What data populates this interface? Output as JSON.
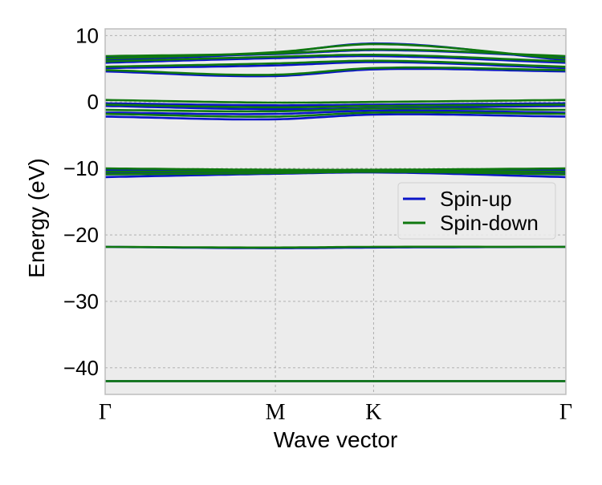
{
  "chart_data": {
    "type": "line",
    "title": "",
    "xlabel": "Wave vector",
    "ylabel": "Energy (eV)",
    "ylim": [
      -44,
      11
    ],
    "xlim": [
      0,
      1
    ],
    "y_ticks": [
      10,
      0,
      -10,
      -20,
      -30,
      -40
    ],
    "y_tick_labels": [
      "10",
      "0",
      "−10",
      "−20",
      "−30",
      "−40"
    ],
    "x_ticks": [
      {
        "label": "Γ",
        "x": 0.0
      },
      {
        "label": "M",
        "x": 0.3695
      },
      {
        "label": "K",
        "x": 0.5826
      },
      {
        "label": "Γ",
        "x": 1.0
      }
    ],
    "grid": true,
    "legend_position": "center-right",
    "colors": {
      "spin_up": "#0a14c8",
      "spin_down": "#0f780f",
      "axes_background": "#ececec",
      "grid": "#a8a8a8",
      "frame": "#bdbdbd"
    },
    "series": [
      {
        "name": "Spin-up",
        "color": "#0a14c8",
        "bands": [
          {
            "x": [
              0,
              0.3695,
              0.5826,
              1.0
            ],
            "y": [
              -42.0,
              -42.0,
              -42.0,
              -42.0
            ]
          },
          {
            "x": [
              0,
              0.3695,
              0.5826,
              1.0
            ],
            "y": [
              -21.8,
              -22.0,
              -21.9,
              -21.8
            ]
          },
          {
            "x": [
              0,
              0.3695,
              0.5826,
              1.0
            ],
            "y": [
              -11.3,
              -10.8,
              -10.6,
              -11.3
            ]
          },
          {
            "x": [
              0,
              0.3695,
              0.5826,
              1.0
            ],
            "y": [
              -10.7,
              -10.6,
              -10.5,
              -10.7
            ]
          },
          {
            "x": [
              0,
              0.3695,
              0.5826,
              1.0
            ],
            "y": [
              -10.2,
              -10.4,
              -10.4,
              -10.2
            ]
          },
          {
            "x": [
              0,
              0.3695,
              0.5826,
              1.0
            ],
            "y": [
              -2.2,
              -2.6,
              -1.9,
              -2.2
            ]
          },
          {
            "x": [
              0,
              0.3695,
              0.5826,
              1.0
            ],
            "y": [
              -1.6,
              -1.8,
              -1.3,
              -1.6
            ]
          },
          {
            "x": [
              0,
              0.3695,
              0.5826,
              1.0
            ],
            "y": [
              -0.6,
              -1.1,
              -0.9,
              -0.6
            ]
          },
          {
            "x": [
              0,
              0.3695,
              0.5826,
              1.0
            ],
            "y": [
              -0.2,
              -0.5,
              -0.4,
              -0.2
            ]
          },
          {
            "x": [
              0,
              0.3695,
              0.5826,
              1.0
            ],
            "y": [
              4.6,
              3.9,
              4.9,
              4.6
            ]
          },
          {
            "x": [
              0,
              0.3695,
              0.5826,
              1.0
            ],
            "y": [
              5.1,
              5.5,
              6.0,
              5.1
            ]
          },
          {
            "x": [
              0,
              0.3695,
              0.5826,
              1.0
            ],
            "y": [
              5.9,
              6.6,
              6.9,
              5.9
            ]
          },
          {
            "x": [
              0,
              0.3695,
              0.5826,
              1.0
            ],
            "y": [
              6.3,
              7.4,
              8.8,
              6.3
            ]
          },
          {
            "x": [
              0,
              0.3695,
              0.5826,
              1.0
            ],
            "y": [
              6.8,
              7.2,
              7.8,
              6.8
            ]
          }
        ]
      },
      {
        "name": "Spin-down",
        "color": "#0f780f",
        "bands": [
          {
            "x": [
              0,
              0.3695,
              0.5826,
              1.0
            ],
            "y": [
              -42.0,
              -42.0,
              -42.0,
              -42.0
            ]
          },
          {
            "x": [
              0,
              0.3695,
              0.5826,
              1.0
            ],
            "y": [
              -21.8,
              -21.9,
              -21.8,
              -21.8
            ]
          },
          {
            "x": [
              0,
              0.3695,
              0.5826,
              1.0
            ],
            "y": [
              -10.9,
              -10.7,
              -10.5,
              -10.9
            ]
          },
          {
            "x": [
              0,
              0.3695,
              0.5826,
              1.0
            ],
            "y": [
              -10.5,
              -10.4,
              -10.3,
              -10.5
            ]
          },
          {
            "x": [
              0,
              0.3695,
              0.5826,
              1.0
            ],
            "y": [
              -10.0,
              -10.2,
              -10.2,
              -10.0
            ]
          },
          {
            "x": [
              0,
              0.3695,
              0.5826,
              1.0
            ],
            "y": [
              -1.8,
              -2.2,
              -1.6,
              -1.8
            ]
          },
          {
            "x": [
              0,
              0.3695,
              0.5826,
              1.0
            ],
            "y": [
              -1.2,
              -1.4,
              -1.0,
              -1.2
            ]
          },
          {
            "x": [
              0,
              0.3695,
              0.5826,
              1.0
            ],
            "y": [
              -0.4,
              -0.8,
              -0.6,
              -0.4
            ]
          },
          {
            "x": [
              0,
              0.3695,
              0.5826,
              1.0
            ],
            "y": [
              0.3,
              -0.1,
              0.0,
              0.3
            ]
          },
          {
            "x": [
              0,
              0.3695,
              0.5826,
              1.0
            ],
            "y": [
              4.8,
              4.1,
              5.1,
              4.8
            ]
          },
          {
            "x": [
              0,
              0.3695,
              0.5826,
              1.0
            ],
            "y": [
              5.3,
              5.8,
              6.2,
              5.3
            ]
          },
          {
            "x": [
              0,
              0.3695,
              0.5826,
              1.0
            ],
            "y": [
              6.1,
              6.8,
              7.1,
              6.1
            ]
          },
          {
            "x": [
              0,
              0.3695,
              0.5826,
              1.0
            ],
            "y": [
              6.5,
              7.5,
              8.7,
              6.5
            ]
          },
          {
            "x": [
              0,
              0.3695,
              0.5826,
              1.0
            ],
            "y": [
              6.9,
              7.3,
              7.9,
              6.9
            ]
          }
        ]
      }
    ]
  }
}
